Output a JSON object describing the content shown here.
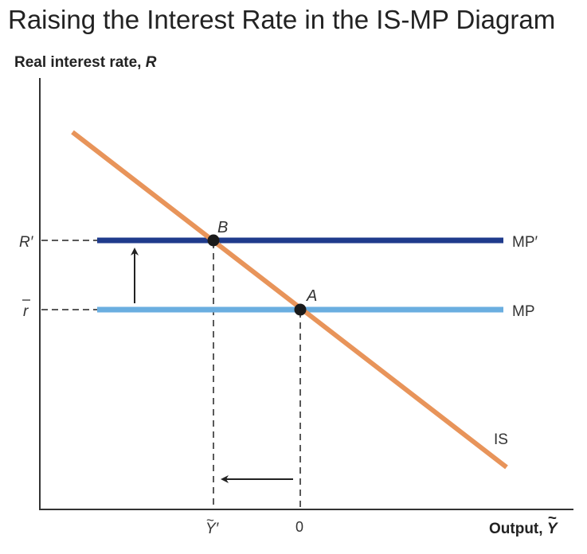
{
  "title": "Raising the Interest Rate in the IS-MP Diagram",
  "axes": {
    "y_label": "Real interest rate, ",
    "y_var": "R",
    "x_label": "Output, ",
    "x_var": "Y",
    "x_var_accent": "~"
  },
  "ticks": {
    "r_prime": "R′",
    "r_bar": "r",
    "y_tilde_prime": "Y′",
    "y_tilde_prime_accent": "~",
    "zero": "0"
  },
  "curves": {
    "mp_prime": "MP′",
    "mp": "MP",
    "is": "IS"
  },
  "points": {
    "a": "A",
    "b": "B"
  },
  "colors": {
    "is": "#e8945a",
    "mp": "#6aaee0",
    "mp_prime": "#1f3b8c",
    "axis": "#333333",
    "point": "#1a1a1a"
  }
}
